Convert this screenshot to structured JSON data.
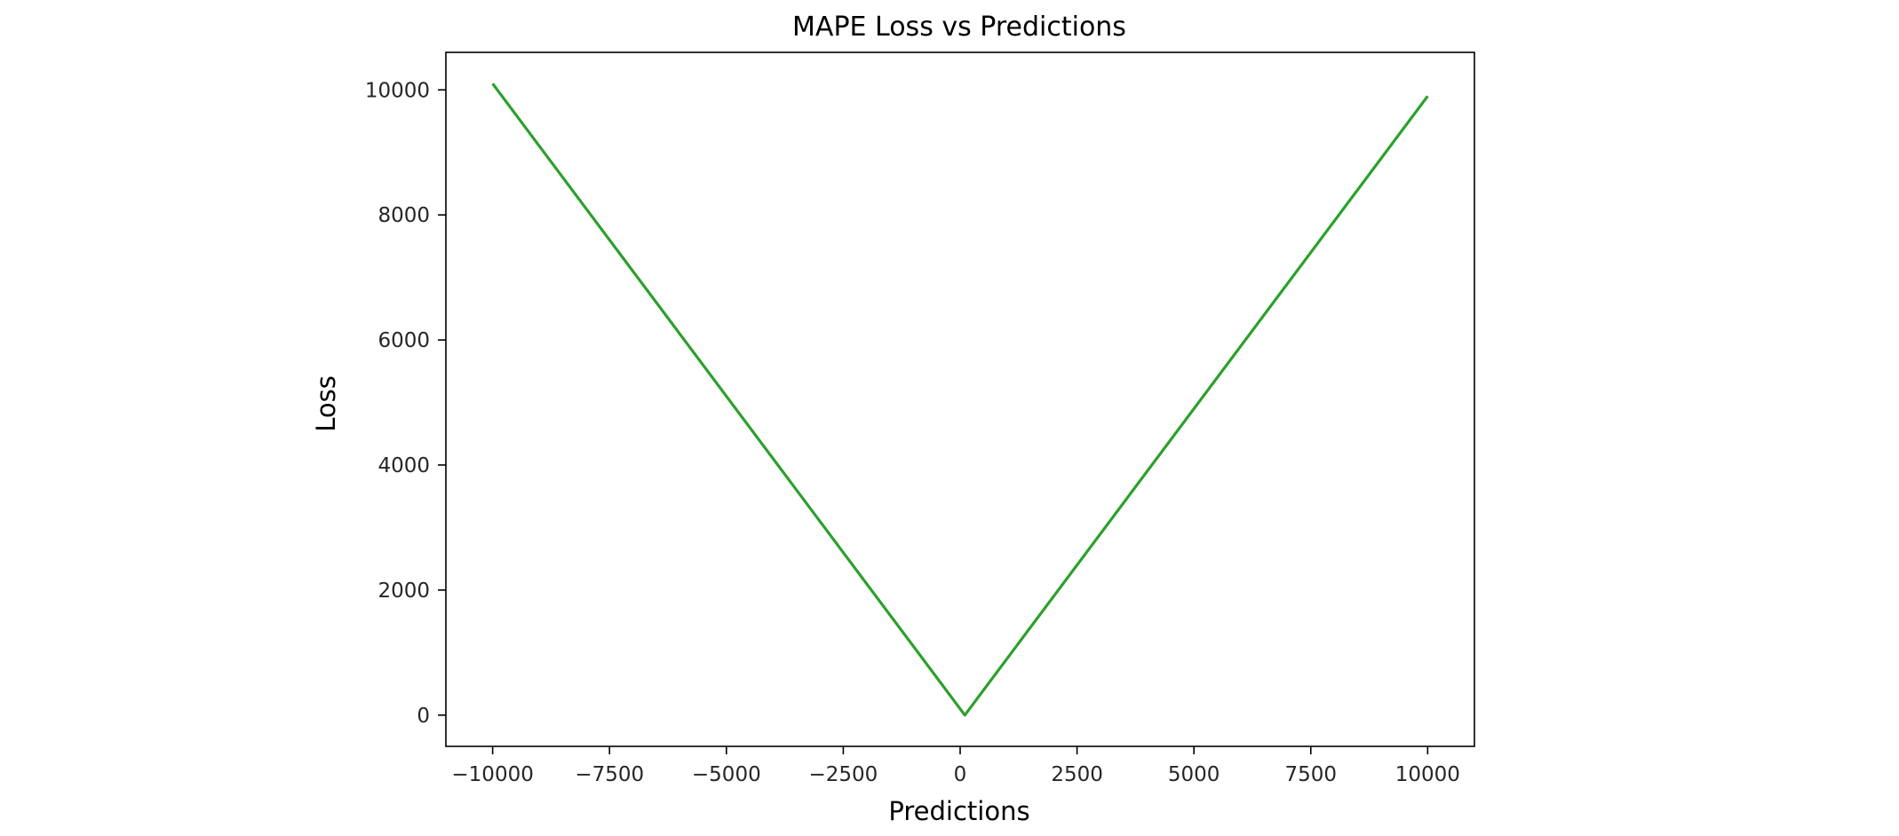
{
  "chart_data": {
    "type": "line",
    "title": "MAPE Loss vs Predictions",
    "xlabel": "Predictions",
    "ylabel": "Loss",
    "xlim": [
      -11000,
      11000
    ],
    "ylim": [
      -500,
      10600
    ],
    "x_ticks": [
      -10000,
      -7500,
      -5000,
      -2500,
      0,
      2500,
      5000,
      7500,
      10000
    ],
    "x_tick_labels": [
      "−10000",
      "−7500",
      "−5000",
      "−2500",
      "0",
      "2500",
      "5000",
      "7500",
      "10000"
    ],
    "y_ticks": [
      0,
      2000,
      4000,
      6000,
      8000,
      10000
    ],
    "y_tick_labels": [
      "0",
      "2000",
      "4000",
      "6000",
      "8000",
      "10000"
    ],
    "grid": false,
    "series": [
      {
        "color": "#2ca02c",
        "x": [
          -10000,
          100,
          10000
        ],
        "y": [
          10100,
          0,
          9900
        ]
      }
    ]
  }
}
